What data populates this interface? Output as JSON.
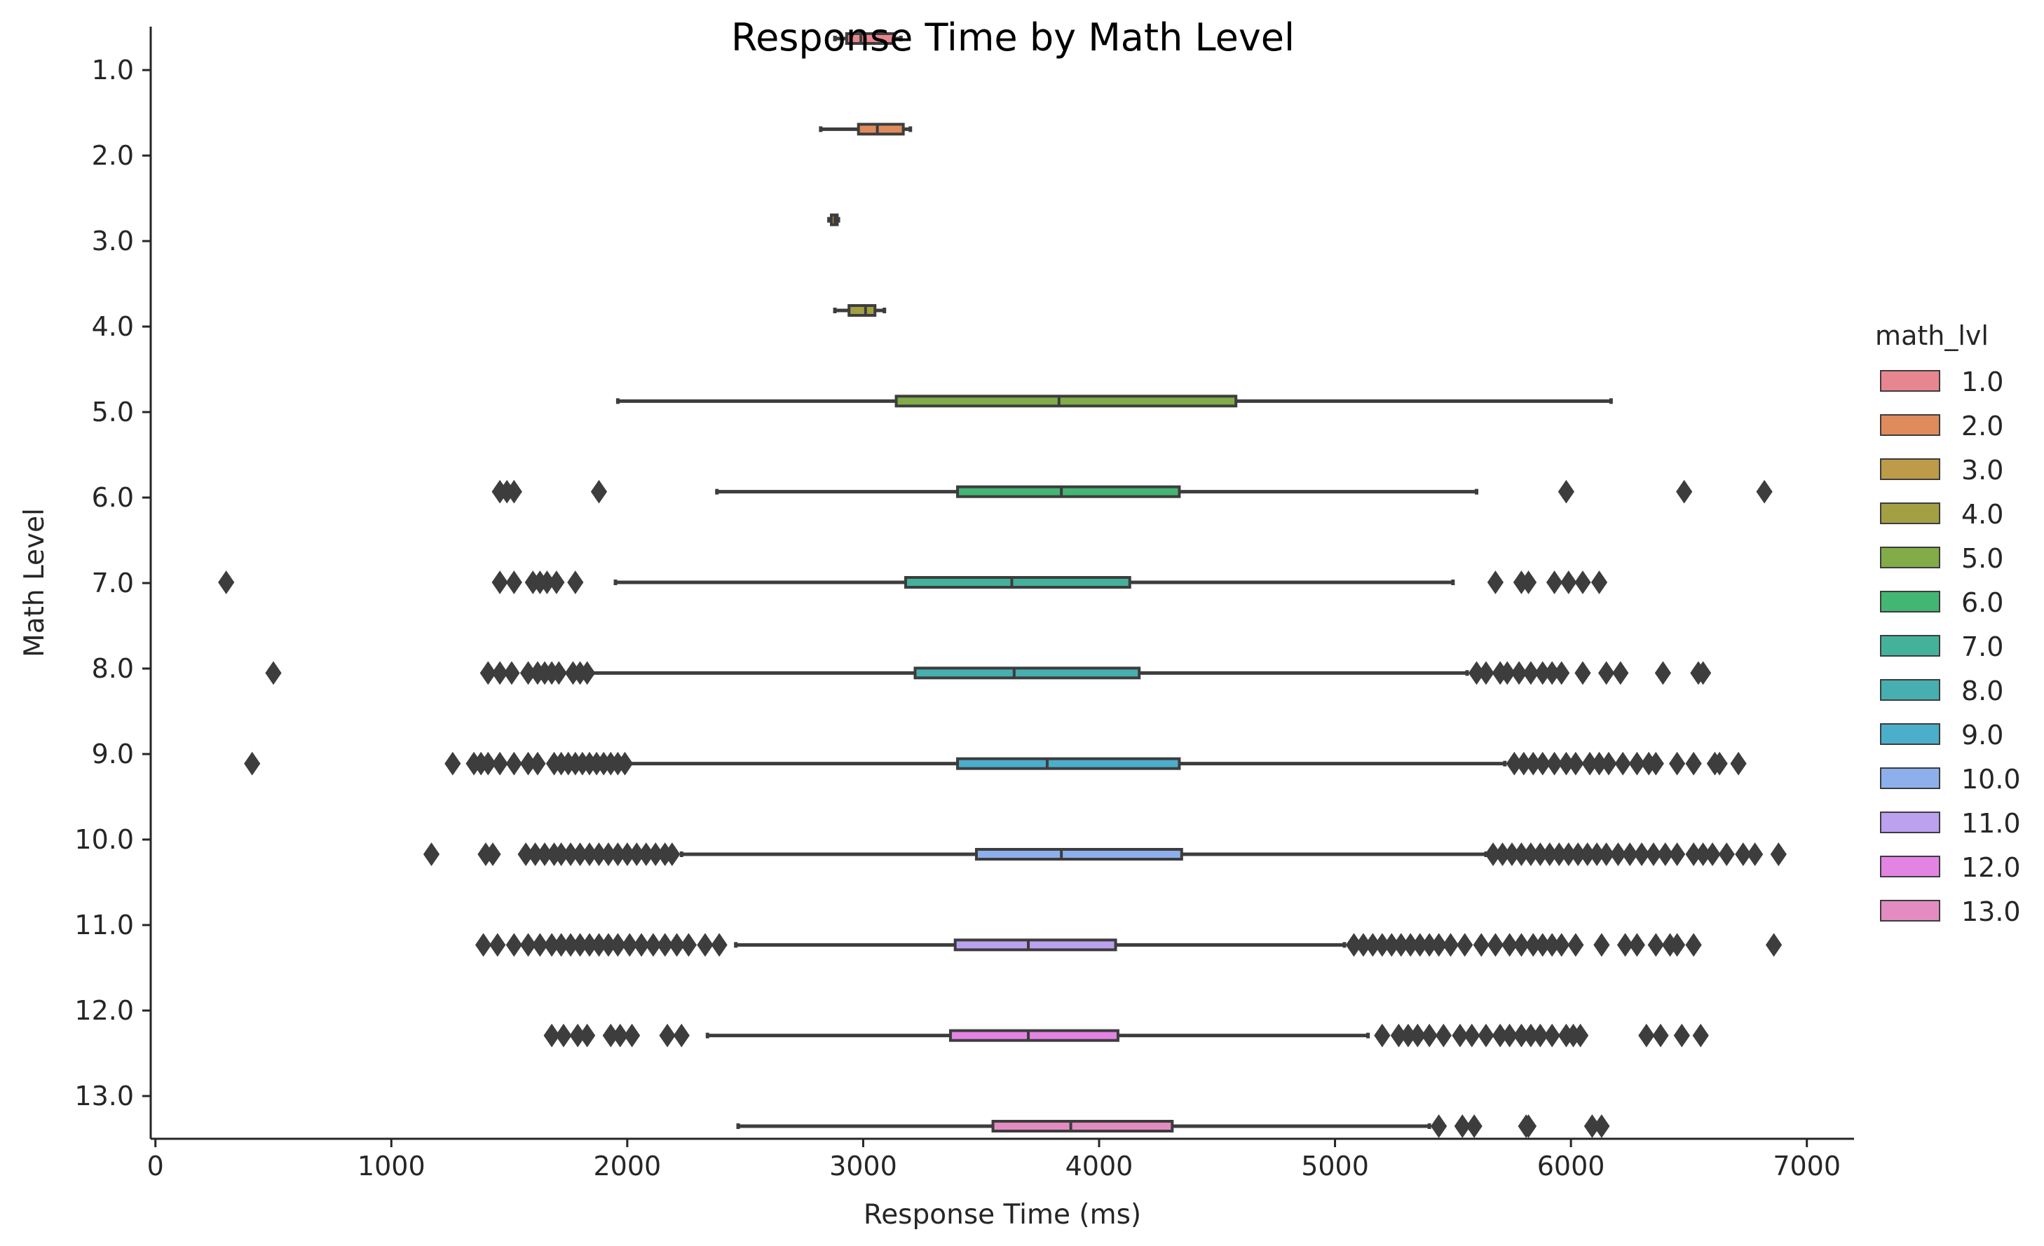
{
  "chart_data": {
    "type": "boxplot",
    "orientation": "horizontal",
    "title": "Response Time by Math Level",
    "xlabel": "Response Time (ms)",
    "ylabel": "Math Level",
    "xlim": [
      -20,
      7200
    ],
    "xticks": [
      0,
      1000,
      2000,
      3000,
      4000,
      5000,
      6000,
      7000
    ],
    "grid": false,
    "legend": {
      "title": "math_lvl",
      "position": "right",
      "entries": [
        {
          "label": "1.0",
          "color": "#e8868f"
        },
        {
          "label": "2.0",
          "color": "#e08b5c"
        },
        {
          "label": "3.0",
          "color": "#bd9b48"
        },
        {
          "label": "4.0",
          "color": "#a3a043"
        },
        {
          "label": "5.0",
          "color": "#82ac47"
        },
        {
          "label": "6.0",
          "color": "#43b673"
        },
        {
          "label": "7.0",
          "color": "#44b29a"
        },
        {
          "label": "8.0",
          "color": "#47afaf"
        },
        {
          "label": "9.0",
          "color": "#4baecb"
        },
        {
          "label": "10.0",
          "color": "#8db0ec"
        },
        {
          "label": "11.0",
          "color": "#bba1ee"
        },
        {
          "label": "12.0",
          "color": "#e384e4"
        },
        {
          "label": "13.0",
          "color": "#e38cc1"
        }
      ]
    },
    "categories": [
      "1.0",
      "2.0",
      "3.0",
      "4.0",
      "5.0",
      "6.0",
      "7.0",
      "8.0",
      "9.0",
      "10.0",
      "11.0",
      "12.0",
      "13.0"
    ],
    "boxes": [
      {
        "level": "1.0",
        "whisker_low": 2880,
        "q1": 2930,
        "median": 2990,
        "q3": 3130,
        "whisker_high": 3160,
        "outliers": []
      },
      {
        "level": "2.0",
        "whisker_low": 2820,
        "q1": 2980,
        "median": 3060,
        "q3": 3170,
        "whisker_high": 3200,
        "outliers": []
      },
      {
        "level": "3.0",
        "whisker_low": 2855,
        "q1": 2865,
        "median": 2880,
        "q3": 2890,
        "whisker_high": 2895,
        "outliers": []
      },
      {
        "level": "4.0",
        "whisker_low": 2880,
        "q1": 2940,
        "median": 3010,
        "q3": 3050,
        "whisker_high": 3090,
        "outliers": []
      },
      {
        "level": "5.0",
        "whisker_low": 1960,
        "q1": 3140,
        "median": 3830,
        "q3": 4580,
        "whisker_high": 6170,
        "outliers": []
      },
      {
        "level": "6.0",
        "whisker_low": 2380,
        "q1": 3400,
        "median": 3840,
        "q3": 4340,
        "whisker_high": 5600,
        "outliers": [
          1460,
          1490,
          1520,
          1880,
          5980,
          6480,
          6820
        ]
      },
      {
        "level": "7.0",
        "whisker_low": 1950,
        "q1": 3180,
        "median": 3630,
        "q3": 4130,
        "whisker_high": 5500,
        "outliers": [
          300,
          1460,
          1520,
          1600,
          1630,
          1660,
          1700,
          1780,
          5680,
          5790,
          5820,
          5930,
          5990,
          6050,
          6120
        ]
      },
      {
        "level": "8.0",
        "whisker_low": 1850,
        "q1": 3220,
        "median": 3640,
        "q3": 4170,
        "whisker_high": 5560,
        "outliers": [
          500,
          1410,
          1460,
          1510,
          1580,
          1620,
          1650,
          1680,
          1710,
          1770,
          1800,
          1830,
          5600,
          5640,
          5700,
          5730,
          5780,
          5830,
          5880,
          5920,
          5960,
          6050,
          6150,
          6210,
          6390,
          6540,
          6560
        ]
      },
      {
        "level": "9.0",
        "whisker_low": 2000,
        "q1": 3400,
        "median": 3780,
        "q3": 4340,
        "whisker_high": 5720,
        "outliers": [
          410,
          1260,
          1350,
          1380,
          1410,
          1460,
          1520,
          1580,
          1620,
          1690,
          1720,
          1750,
          1780,
          1810,
          1840,
          1870,
          1900,
          1930,
          1960,
          1990,
          5760,
          5800,
          5840,
          5880,
          5930,
          5980,
          6020,
          6080,
          6120,
          6160,
          6220,
          6280,
          6330,
          6360,
          6450,
          6520,
          6610,
          6630,
          6710
        ]
      },
      {
        "level": "10.0",
        "whisker_low": 2230,
        "q1": 3480,
        "median": 3840,
        "q3": 4350,
        "whisker_high": 5640,
        "outliers": [
          1170,
          1400,
          1430,
          1570,
          1610,
          1650,
          1690,
          1720,
          1760,
          1800,
          1840,
          1880,
          1920,
          1960,
          2000,
          2040,
          2080,
          2120,
          2160,
          2190,
          5670,
          5710,
          5750,
          5790,
          5830,
          5870,
          5910,
          5950,
          5990,
          6030,
          6070,
          6110,
          6150,
          6200,
          6250,
          6300,
          6350,
          6400,
          6450,
          6520,
          6560,
          6600,
          6660,
          6730,
          6780,
          6880
        ]
      },
      {
        "level": "11.0",
        "whisker_low": 2460,
        "q1": 3390,
        "median": 3700,
        "q3": 4070,
        "whisker_high": 5040,
        "outliers": [
          1390,
          1450,
          1520,
          1580,
          1630,
          1680,
          1720,
          1760,
          1800,
          1840,
          1880,
          1920,
          1960,
          2010,
          2060,
          2110,
          2160,
          2210,
          2260,
          2330,
          2390,
          5080,
          5120,
          5160,
          5200,
          5240,
          5280,
          5320,
          5360,
          5400,
          5440,
          5490,
          5550,
          5620,
          5680,
          5740,
          5790,
          5840,
          5880,
          5920,
          5960,
          6020,
          6130,
          6230,
          6280,
          6360,
          6420,
          6450,
          6520,
          6860
        ]
      },
      {
        "level": "12.0",
        "whisker_low": 2340,
        "q1": 3370,
        "median": 3700,
        "q3": 4080,
        "whisker_high": 5140,
        "outliers": [
          1680,
          1730,
          1790,
          1830,
          1930,
          1970,
          2020,
          2170,
          2230,
          5200,
          5270,
          5310,
          5350,
          5400,
          5460,
          5530,
          5580,
          5640,
          5700,
          5740,
          5790,
          5830,
          5870,
          5920,
          5980,
          6010,
          6040,
          6320,
          6380,
          6470,
          6550
        ]
      },
      {
        "level": "13.0",
        "whisker_low": 2470,
        "q1": 3550,
        "median": 3880,
        "q3": 4310,
        "whisker_high": 5400,
        "outliers": [
          5440,
          5540,
          5590,
          5810,
          5820,
          6090,
          6130
        ]
      }
    ]
  }
}
